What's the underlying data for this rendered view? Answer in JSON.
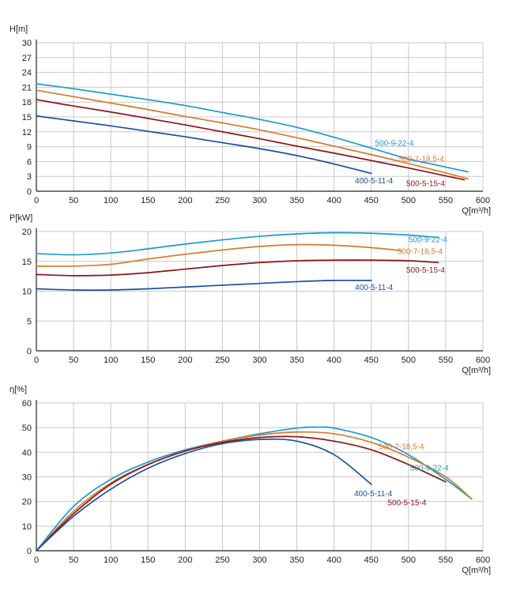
{
  "colors": {
    "500-9-22-4": "#1a9ccf",
    "500-7-18,5-4": "#d77a2a",
    "500-5-15-4": "#8e1414",
    "400-5-11-4": "#1a4fa0"
  },
  "chart_data": [
    {
      "type": "line",
      "title": "",
      "xlabel": "Q[m³/h]",
      "ylabel": "H[m]",
      "xlim": [
        0,
        600
      ],
      "ylim": [
        0,
        30
      ],
      "xticks": [
        0,
        50,
        100,
        150,
        200,
        250,
        300,
        350,
        400,
        450,
        500,
        550,
        600
      ],
      "yticks": [
        0,
        3,
        6,
        9,
        12,
        15,
        18,
        21,
        24,
        27,
        30
      ],
      "grid": true,
      "series": [
        {
          "name": "500-9-22-4",
          "x": [
            0,
            50,
            100,
            150,
            200,
            250,
            300,
            350,
            400,
            450,
            500,
            525,
            580
          ],
          "y": [
            21.7,
            20.7,
            19.6,
            18.5,
            17.3,
            15.9,
            14.5,
            12.9,
            10.9,
            8.7,
            6.5,
            5.7,
            3.9
          ]
        },
        {
          "name": "500-7-18,5-4",
          "x": [
            0,
            50,
            100,
            150,
            200,
            250,
            300,
            350,
            400,
            450,
            500,
            550,
            580
          ],
          "y": [
            20.4,
            19.1,
            17.8,
            16.5,
            15.1,
            13.8,
            12.4,
            10.8,
            9.1,
            7.4,
            5.6,
            3.7,
            2.5
          ]
        },
        {
          "name": "500-5-15-4",
          "x": [
            0,
            50,
            100,
            150,
            200,
            250,
            300,
            350,
            400,
            450,
            500,
            550,
            575
          ],
          "y": [
            18.5,
            17.2,
            16.0,
            14.7,
            13.4,
            12.0,
            10.6,
            9.1,
            7.7,
            6.2,
            4.7,
            3.1,
            2.3
          ]
        },
        {
          "name": "400-5-11-4",
          "x": [
            0,
            50,
            100,
            150,
            200,
            250,
            300,
            350,
            400,
            450
          ],
          "y": [
            15.2,
            14.2,
            13.2,
            12.1,
            11.0,
            9.8,
            8.6,
            7.2,
            5.5,
            3.6
          ]
        }
      ],
      "series_labels": [
        {
          "text": "500-9-22-4",
          "series": "500-9-22-4",
          "at": [
            455,
            9.2
          ]
        },
        {
          "text": "500-7-18,5-4",
          "series": "500-7-18,5-4",
          "at": [
            487,
            6.0
          ]
        },
        {
          "text": "500-5-15-4",
          "series": "500-5-15-4",
          "at": [
            497,
            1.0
          ]
        },
        {
          "text": "400-5-11-4",
          "series": "400-5-11-4",
          "at": [
            428,
            1.6
          ]
        }
      ]
    },
    {
      "type": "line",
      "title": "",
      "xlabel": "Q[m³/h]",
      "ylabel": "P[kW]",
      "xlim": [
        0,
        600
      ],
      "ylim": [
        0,
        20
      ],
      "xticks": [
        0,
        50,
        100,
        150,
        200,
        250,
        300,
        350,
        400,
        450,
        500,
        550,
        600
      ],
      "yticks": [
        0,
        5,
        10,
        15,
        20
      ],
      "grid": true,
      "series": [
        {
          "name": "500-9-22-4",
          "x": [
            0,
            50,
            100,
            150,
            200,
            250,
            300,
            350,
            400,
            450,
            500,
            540
          ],
          "y": [
            16.3,
            16.1,
            16.4,
            17.1,
            17.9,
            18.6,
            19.2,
            19.6,
            19.8,
            19.7,
            19.4,
            19.0
          ]
        },
        {
          "name": "500-7-18,5-4",
          "x": [
            0,
            50,
            100,
            150,
            200,
            250,
            300,
            350,
            400,
            450,
            490
          ],
          "y": [
            14.2,
            14.2,
            14.5,
            15.4,
            16.2,
            16.9,
            17.5,
            17.8,
            17.7,
            17.3,
            16.8
          ]
        },
        {
          "name": "500-5-15-4",
          "x": [
            0,
            50,
            100,
            150,
            200,
            250,
            300,
            350,
            400,
            450,
            500,
            540
          ],
          "y": [
            12.8,
            12.6,
            12.7,
            13.1,
            13.7,
            14.3,
            14.8,
            15.1,
            15.2,
            15.2,
            15.1,
            14.8
          ]
        },
        {
          "name": "400-5-11-4",
          "x": [
            0,
            50,
            100,
            150,
            200,
            250,
            300,
            350,
            400,
            450
          ],
          "y": [
            10.4,
            10.2,
            10.2,
            10.4,
            10.7,
            11.0,
            11.3,
            11.6,
            11.8,
            11.8
          ]
        }
      ],
      "series_labels": [
        {
          "text": "500-9-22-4",
          "series": "500-9-22-4",
          "at": [
            500,
            18.2
          ]
        },
        {
          "text": "500-7-18,5-4",
          "series": "500-7-18,5-4",
          "at": [
            485,
            16.2
          ]
        },
        {
          "text": "500-5-15-4",
          "series": "500-5-15-4",
          "at": [
            497,
            13.1
          ]
        },
        {
          "text": "400-5-11-4",
          "series": "400-5-11-4",
          "at": [
            428,
            10.2
          ]
        }
      ]
    },
    {
      "type": "line",
      "title": "",
      "xlabel": "Q[m³/h]",
      "ylabel": "η[%]",
      "xlim": [
        0,
        600
      ],
      "ylim": [
        0,
        60
      ],
      "xticks": [
        0,
        50,
        100,
        150,
        200,
        250,
        300,
        350,
        400,
        450,
        500,
        550,
        600
      ],
      "yticks": [
        0,
        10,
        20,
        30,
        40,
        50,
        60
      ],
      "grid": true,
      "series": [
        {
          "name": "500-9-22-4",
          "x": [
            0,
            50,
            100,
            150,
            200,
            250,
            300,
            350,
            380,
            400,
            450,
            500,
            550,
            585
          ],
          "y": [
            0,
            18,
            29,
            36,
            41,
            44.5,
            47.5,
            49.8,
            50.2,
            49.8,
            46,
            39,
            29,
            21
          ]
        },
        {
          "name": "500-7-18,5-4",
          "x": [
            0,
            50,
            100,
            150,
            200,
            250,
            300,
            350,
            400,
            450,
            500,
            550,
            585
          ],
          "y": [
            0,
            16,
            27.5,
            35,
            40.5,
            44.5,
            47,
            48.2,
            47.5,
            44,
            38,
            30,
            21
          ]
        },
        {
          "name": "500-5-15-4",
          "x": [
            0,
            50,
            100,
            150,
            200,
            250,
            300,
            350,
            400,
            450,
            500,
            550
          ],
          "y": [
            0,
            15,
            27,
            35,
            40.5,
            44,
            46,
            46.3,
            44.5,
            41,
            35,
            28
          ]
        },
        {
          "name": "400-5-11-4",
          "x": [
            0,
            50,
            100,
            150,
            200,
            250,
            300,
            350,
            400,
            450
          ],
          "y": [
            0,
            14,
            25,
            33.5,
            39.5,
            43.5,
            45.2,
            44.5,
            39,
            27
          ]
        }
      ],
      "series_labels": [
        {
          "text": "500-7-18,5-4",
          "series": "500-7-18,5-4",
          "at": [
            460,
            41.2
          ]
        },
        {
          "text": "500-9-22-4",
          "series": "500-9-22-4",
          "at": [
            502,
            32.5
          ]
        },
        {
          "text": "400-5-11-4",
          "series": "400-5-11-4",
          "at": [
            427,
            22.2
          ]
        },
        {
          "text": "500-5-15-4",
          "series": "500-5-15-4",
          "at": [
            472,
            18.5
          ]
        }
      ]
    }
  ]
}
